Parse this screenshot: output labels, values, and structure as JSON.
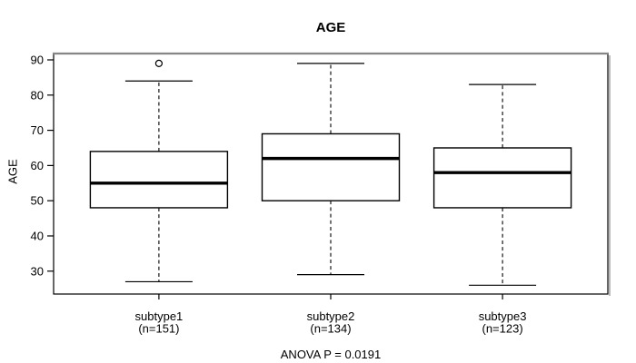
{
  "chart_data": {
    "type": "boxplot",
    "title": "AGE",
    "ylabel": "AGE",
    "footnote": "ANOVA P = 0.0191",
    "anova_p": 0.0191,
    "ylim": [
      23.5,
      91.8
    ],
    "yticks": [
      30,
      40,
      50,
      60,
      70,
      80,
      90
    ],
    "grid": false,
    "legend": "none",
    "colors": {
      "line": "#000000",
      "background": "#ffffff",
      "frame_top": "#868686",
      "shadow": "#a8a8a8"
    },
    "groups": [
      {
        "label": "subtype1",
        "sublabel": "(n=151)",
        "n": 151,
        "whisker_low": 27,
        "q1": 48,
        "median": 55,
        "q3": 64,
        "whisker_high": 84,
        "outliers": [
          89
        ]
      },
      {
        "label": "subtype2",
        "sublabel": "(n=134)",
        "n": 134,
        "whisker_low": 29,
        "q1": 50,
        "median": 62,
        "q3": 69,
        "whisker_high": 89,
        "outliers": []
      },
      {
        "label": "subtype3",
        "sublabel": "(n=123)",
        "n": 123,
        "whisker_low": 26,
        "q1": 48,
        "median": 58,
        "q3": 65,
        "whisker_high": 83,
        "outliers": []
      }
    ]
  }
}
